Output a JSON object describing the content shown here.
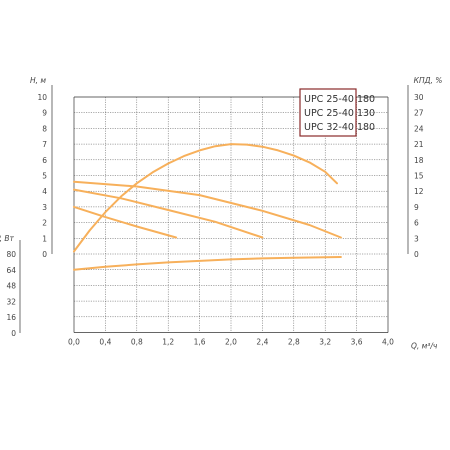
{
  "chart_data": {
    "type": "line",
    "axes": {
      "x": {
        "label": "Q, м³/ч",
        "ticks": [
          "0,0",
          "0,4",
          "0,8",
          "1,2",
          "1,6",
          "2,0",
          "2,4",
          "2,8",
          "3,2",
          "3,6",
          "4,0"
        ],
        "range": [
          0,
          4.0
        ]
      },
      "head": {
        "label": "H, м",
        "ticks": [
          "10",
          "9",
          "8",
          "7",
          "6",
          "5",
          "4",
          "3",
          "2",
          "1",
          "0"
        ],
        "range": [
          0,
          10
        ]
      },
      "efficiency": {
        "label": "КПД, %",
        "ticks": [
          "30",
          "27",
          "24",
          "21",
          "18",
          "15",
          "12",
          "9",
          "6",
          "3",
          "0"
        ],
        "range": [
          0,
          30
        ]
      },
      "power": {
        "label": "P, Вт",
        "ticks": [
          "80",
          "64",
          "48",
          "32",
          "16",
          "0"
        ],
        "range": [
          0,
          80
        ]
      }
    },
    "legend": {
      "placement": "top-right",
      "items": [
        "UPC 25-40 180",
        "UPC 25-40 130",
        "UPC 32-40 180"
      ]
    },
    "grid": true,
    "series": [
      {
        "axis": "head",
        "points": [
          [
            0,
            4.6
          ],
          [
            0.8,
            4.3
          ],
          [
            1.6,
            3.75
          ],
          [
            2.4,
            2.75
          ],
          [
            3.0,
            1.85
          ],
          [
            3.4,
            1.05
          ]
        ]
      },
      {
        "axis": "head",
        "points": [
          [
            0,
            4.1
          ],
          [
            0.6,
            3.55
          ],
          [
            1.2,
            2.8
          ],
          [
            1.8,
            2.05
          ],
          [
            2.4,
            1.05
          ]
        ]
      },
      {
        "axis": "head",
        "points": [
          [
            0,
            3.0
          ],
          [
            0.4,
            2.35
          ],
          [
            0.8,
            1.75
          ],
          [
            1.3,
            1.05
          ]
        ]
      },
      {
        "axis": "efficiency",
        "points": [
          [
            0,
            0.5
          ],
          [
            0.2,
            4.5
          ],
          [
            0.4,
            8.0
          ],
          [
            0.6,
            11.0
          ],
          [
            0.8,
            13.5
          ],
          [
            1.0,
            15.6
          ],
          [
            1.2,
            17.3
          ],
          [
            1.4,
            18.7
          ],
          [
            1.6,
            19.8
          ],
          [
            1.8,
            20.6
          ],
          [
            2.0,
            21.0
          ],
          [
            2.2,
            20.9
          ],
          [
            2.4,
            20.5
          ],
          [
            2.6,
            19.8
          ],
          [
            2.8,
            18.8
          ],
          [
            3.0,
            17.5
          ],
          [
            3.2,
            15.7
          ],
          [
            3.35,
            13.5
          ]
        ]
      },
      {
        "axis": "power",
        "points": [
          [
            0,
            64
          ],
          [
            0.4,
            67
          ],
          [
            0.8,
            69.5
          ],
          [
            1.2,
            71.5
          ],
          [
            1.6,
            73
          ],
          [
            2.0,
            74.5
          ],
          [
            2.4,
            75.5
          ],
          [
            2.8,
            76.3
          ],
          [
            3.2,
            76.8
          ],
          [
            3.4,
            77
          ]
        ]
      }
    ],
    "colors": {
      "curve": "#f7b05b",
      "grid": "#555555",
      "frame": "#333333",
      "text": "#444444",
      "legend_border": "#8a2a2a"
    }
  }
}
